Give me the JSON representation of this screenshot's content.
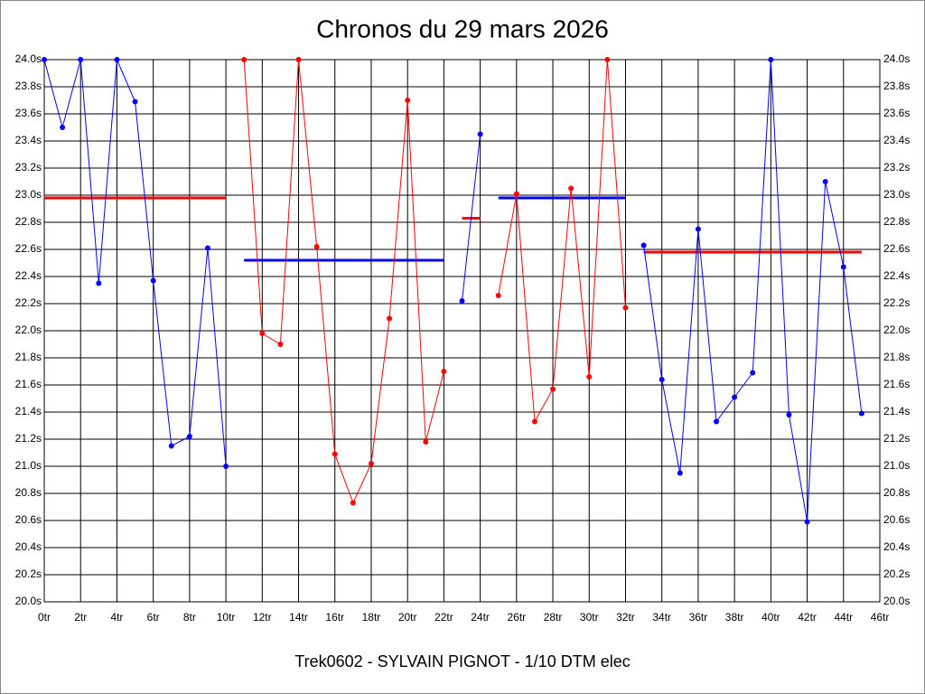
{
  "chart_data": {
    "type": "line",
    "title": "Chronos du 29 mars 2026",
    "x_label": "Trek0602 - SYLVAIN PIGNOT - 1/10 DTM elec",
    "xlim": [
      0,
      46
    ],
    "xticks": [
      {
        "value": 0,
        "label": "0tr"
      },
      {
        "value": 2,
        "label": "2tr"
      },
      {
        "value": 4,
        "label": "4tr"
      },
      {
        "value": 6,
        "label": "6tr"
      },
      {
        "value": 8,
        "label": "8tr"
      },
      {
        "value": 10,
        "label": "10tr"
      },
      {
        "value": 12,
        "label": "12tr"
      },
      {
        "value": 14,
        "label": "14tr"
      },
      {
        "value": 16,
        "label": "16tr"
      },
      {
        "value": 18,
        "label": "18tr"
      },
      {
        "value": 20,
        "label": "20tr"
      },
      {
        "value": 22,
        "label": "22tr"
      },
      {
        "value": 24,
        "label": "24tr"
      },
      {
        "value": 26,
        "label": "26tr"
      },
      {
        "value": 28,
        "label": "28tr"
      },
      {
        "value": 30,
        "label": "30tr"
      },
      {
        "value": 32,
        "label": "32tr"
      },
      {
        "value": 34,
        "label": "34tr"
      },
      {
        "value": 36,
        "label": "36tr"
      },
      {
        "value": 38,
        "label": "38tr"
      },
      {
        "value": 40,
        "label": "40tr"
      },
      {
        "value": 42,
        "label": "42tr"
      },
      {
        "value": 44,
        "label": "44tr"
      },
      {
        "value": 46,
        "label": "46tr"
      }
    ],
    "ylim": [
      20,
      24
    ],
    "yticks": [
      {
        "value": 20,
        "label": "20.0s"
      },
      {
        "value": 20.2,
        "label": "20.2s"
      },
      {
        "value": 20.4,
        "label": "20.4s"
      },
      {
        "value": 20.6,
        "label": "20.6s"
      },
      {
        "value": 20.8,
        "label": "20.8s"
      },
      {
        "value": 21,
        "label": "21.0s"
      },
      {
        "value": 21.2,
        "label": "21.2s"
      },
      {
        "value": 21.4,
        "label": "21.4s"
      },
      {
        "value": 21.6,
        "label": "21.6s"
      },
      {
        "value": 21.8,
        "label": "21.8s"
      },
      {
        "value": 22,
        "label": "22.0s"
      },
      {
        "value": 22.2,
        "label": "22.2s"
      },
      {
        "value": 22.4,
        "label": "22.4s"
      },
      {
        "value": 22.6,
        "label": "22.6s"
      },
      {
        "value": 22.8,
        "label": "22.8s"
      },
      {
        "value": 23,
        "label": "23.0s"
      },
      {
        "value": 23.2,
        "label": "23.2s"
      },
      {
        "value": 23.4,
        "label": "23.4s"
      },
      {
        "value": 23.6,
        "label": "23.6s"
      },
      {
        "value": 23.8,
        "label": "23.8s"
      },
      {
        "value": 24,
        "label": "24.0s"
      }
    ],
    "grid": true,
    "series": [
      {
        "color": "#0000ff",
        "x": [
          0,
          1,
          2,
          3,
          4,
          5,
          6,
          7,
          8,
          9,
          10
        ],
        "values": [
          24.0,
          23.5,
          24.0,
          22.35,
          24.0,
          23.69,
          22.37,
          21.15,
          21.22,
          22.61,
          21.0
        ]
      },
      {
        "color": "#ff0000",
        "x": [
          11,
          12,
          13,
          14,
          15,
          16,
          17,
          18,
          19,
          20,
          21,
          22
        ],
        "values": [
          24.0,
          21.98,
          21.9,
          24.0,
          22.62,
          21.09,
          20.73,
          21.02,
          22.09,
          23.7,
          21.18,
          21.7
        ]
      },
      {
        "color": "#0000ff",
        "x": [
          23,
          24
        ],
        "values": [
          22.22,
          23.45
        ]
      },
      {
        "color": "#ff0000",
        "x": [
          25,
          26,
          27,
          28,
          29,
          30,
          31,
          32
        ],
        "values": [
          22.26,
          23.01,
          21.33,
          21.57,
          23.05,
          21.66,
          24.0,
          22.17
        ]
      },
      {
        "color": "#0000ff",
        "x": [
          33,
          34,
          35,
          36,
          37,
          38,
          39,
          40,
          41,
          42,
          43,
          44,
          45
        ],
        "values": [
          22.63,
          21.64,
          20.95,
          22.75,
          21.33,
          21.51,
          21.69,
          24.0,
          21.38,
          20.59,
          23.1,
          22.47,
          21.39
        ]
      }
    ],
    "average_lines": [
      {
        "color": "#ff0000",
        "x": [
          0,
          10
        ],
        "value": 22.98
      },
      {
        "color": "#0000ff",
        "x": [
          11,
          22
        ],
        "value": 22.52
      },
      {
        "color": "#ff0000",
        "x": [
          23,
          24
        ],
        "value": 22.83
      },
      {
        "color": "#0000ff",
        "x": [
          25,
          32
        ],
        "value": 22.98
      },
      {
        "color": "#ff0000",
        "x": [
          33,
          45
        ],
        "value": 22.58
      }
    ]
  }
}
